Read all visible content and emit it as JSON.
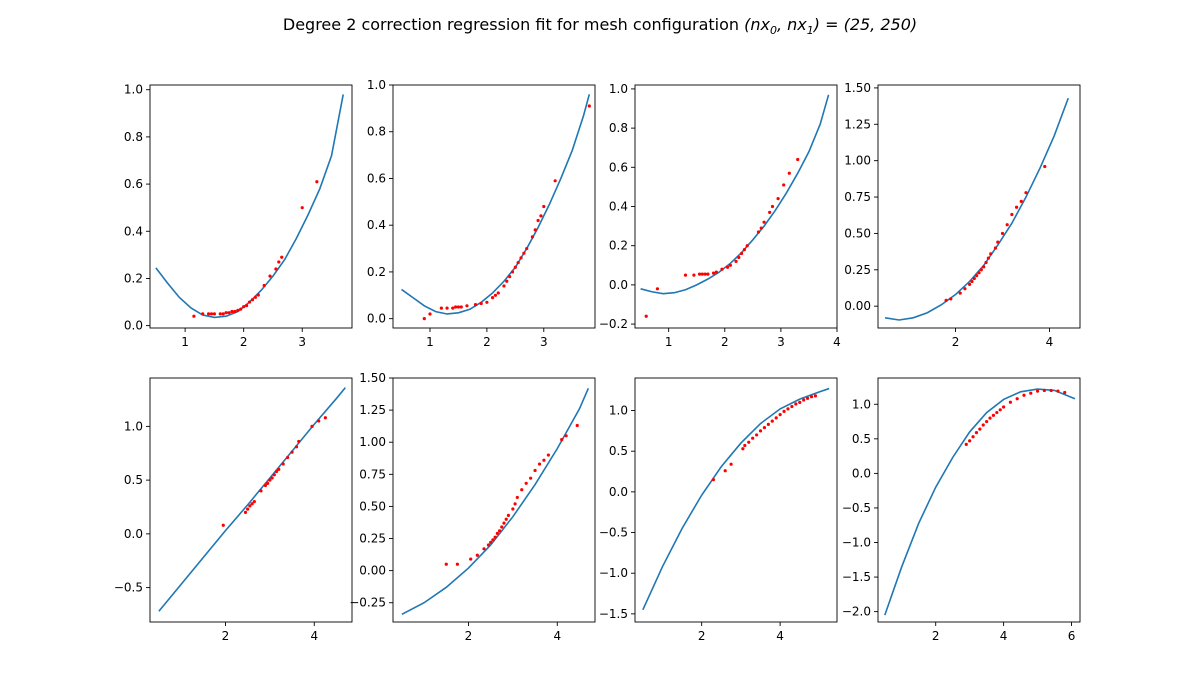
{
  "figure": {
    "title": "Degree 2 correction regression fit for mesh configuration (nx0, nx1) = (25, 250)",
    "title_main": "Degree 2 correction regression fit for mesh configuration ",
    "title_math": "(nx",
    "title_sub0": "0",
    "title_mid": ", nx",
    "title_sub1": "1",
    "title_end": ") = (25, 250)"
  },
  "colors": {
    "curve": "#1f77b4",
    "points": "#ff0000",
    "axes": "#000000"
  },
  "chart_data": [
    {
      "type": "scatter",
      "xlim": [
        0.4,
        3.85
      ],
      "ylim": [
        -0.01,
        1.02
      ],
      "xticks": [
        1,
        2,
        3
      ],
      "xtick_labels": [
        "1",
        "2",
        "3"
      ],
      "yticks": [
        0,
        0.2,
        0.4,
        0.6,
        0.8,
        1.0
      ],
      "ytick_labels": [
        "0.0",
        "0.2",
        "0.4",
        "0.6",
        "0.8",
        "1.0"
      ],
      "series": [
        {
          "kind": "curve",
          "x": [
            0.5,
            0.7,
            0.9,
            1.1,
            1.3,
            1.5,
            1.7,
            1.9,
            2.1,
            2.3,
            2.5,
            2.7,
            2.9,
            3.1,
            3.3,
            3.5,
            3.7
          ],
          "y": [
            0.245,
            0.18,
            0.12,
            0.075,
            0.045,
            0.035,
            0.04,
            0.06,
            0.1,
            0.15,
            0.21,
            0.28,
            0.37,
            0.47,
            0.58,
            0.72,
            0.98
          ]
        },
        {
          "kind": "points",
          "x": [
            1.15,
            1.3,
            1.4,
            1.45,
            1.5,
            1.6,
            1.65,
            1.7,
            1.75,
            1.8,
            1.85,
            1.9,
            1.95,
            2.0,
            2.05,
            2.1,
            2.15,
            2.2,
            2.25,
            2.35,
            2.45,
            2.55,
            2.6,
            2.65,
            3.0,
            3.25
          ],
          "y": [
            0.04,
            0.05,
            0.05,
            0.05,
            0.05,
            0.05,
            0.05,
            0.055,
            0.055,
            0.06,
            0.06,
            0.065,
            0.07,
            0.08,
            0.085,
            0.1,
            0.11,
            0.12,
            0.13,
            0.17,
            0.21,
            0.24,
            0.27,
            0.29,
            0.5,
            0.61
          ]
        }
      ]
    },
    {
      "type": "scatter",
      "xlim": [
        0.35,
        3.9
      ],
      "ylim": [
        -0.04,
        1.0
      ],
      "xticks": [
        1,
        2,
        3
      ],
      "xtick_labels": [
        "1",
        "2",
        "3"
      ],
      "yticks": [
        0,
        0.2,
        0.4,
        0.6,
        0.8,
        1.0
      ],
      "ytick_labels": [
        "0.0",
        "0.2",
        "0.4",
        "0.6",
        "0.8",
        "1.0"
      ],
      "series": [
        {
          "kind": "curve",
          "x": [
            0.5,
            0.7,
            0.9,
            1.1,
            1.3,
            1.5,
            1.7,
            1.9,
            2.1,
            2.3,
            2.5,
            2.7,
            2.9,
            3.1,
            3.3,
            3.5,
            3.7,
            3.8
          ],
          "y": [
            0.125,
            0.09,
            0.055,
            0.03,
            0.02,
            0.025,
            0.04,
            0.07,
            0.11,
            0.16,
            0.22,
            0.3,
            0.39,
            0.49,
            0.6,
            0.72,
            0.87,
            0.96
          ]
        },
        {
          "kind": "points",
          "x": [
            0.9,
            1.0,
            1.2,
            1.3,
            1.4,
            1.45,
            1.5,
            1.55,
            1.65,
            1.8,
            1.9,
            2.0,
            2.1,
            2.15,
            2.2,
            2.3,
            2.35,
            2.4,
            2.45,
            2.5,
            2.55,
            2.6,
            2.65,
            2.7,
            2.8,
            2.85,
            2.9,
            2.95,
            3.0,
            3.2,
            3.8
          ],
          "y": [
            0.0,
            0.02,
            0.045,
            0.045,
            0.045,
            0.05,
            0.05,
            0.05,
            0.055,
            0.06,
            0.065,
            0.07,
            0.09,
            0.1,
            0.11,
            0.14,
            0.16,
            0.18,
            0.2,
            0.22,
            0.24,
            0.26,
            0.28,
            0.3,
            0.35,
            0.38,
            0.42,
            0.44,
            0.48,
            0.59,
            0.91
          ]
        }
      ]
    },
    {
      "type": "scatter",
      "xlim": [
        0.4,
        4.0
      ],
      "ylim": [
        -0.22,
        1.02
      ],
      "xticks": [
        1,
        2,
        3,
        4
      ],
      "xtick_labels": [
        "1",
        "2",
        "3",
        "4"
      ],
      "yticks": [
        -0.2,
        0,
        0.2,
        0.4,
        0.6,
        0.8,
        1.0
      ],
      "ytick_labels": [
        "−0.2",
        "0.0",
        "0.2",
        "0.4",
        "0.6",
        "0.8",
        "1.0"
      ],
      "series": [
        {
          "kind": "curve",
          "x": [
            0.5,
            0.7,
            0.9,
            1.1,
            1.3,
            1.5,
            1.7,
            1.9,
            2.1,
            2.3,
            2.5,
            2.7,
            2.9,
            3.1,
            3.3,
            3.5,
            3.7,
            3.85
          ],
          "y": [
            -0.02,
            -0.035,
            -0.045,
            -0.04,
            -0.025,
            0.0,
            0.03,
            0.065,
            0.11,
            0.165,
            0.23,
            0.3,
            0.38,
            0.47,
            0.57,
            0.68,
            0.82,
            0.97
          ]
        },
        {
          "kind": "points",
          "x": [
            0.6,
            0.8,
            1.3,
            1.45,
            1.55,
            1.6,
            1.65,
            1.7,
            1.8,
            1.85,
            1.95,
            2.05,
            2.1,
            2.2,
            2.25,
            2.3,
            2.35,
            2.4,
            2.6,
            2.65,
            2.7,
            2.8,
            2.85,
            2.95,
            3.05,
            3.15,
            3.3
          ],
          "y": [
            -0.16,
            -0.02,
            0.05,
            0.05,
            0.055,
            0.055,
            0.055,
            0.055,
            0.06,
            0.065,
            0.08,
            0.09,
            0.1,
            0.12,
            0.14,
            0.16,
            0.18,
            0.2,
            0.27,
            0.29,
            0.32,
            0.37,
            0.4,
            0.44,
            0.51,
            0.57,
            0.64
          ]
        }
      ]
    },
    {
      "type": "scatter",
      "xlim": [
        0.35,
        4.65
      ],
      "ylim": [
        -0.15,
        1.52
      ],
      "xticks": [
        2,
        4
      ],
      "xtick_labels": [
        "2",
        "4"
      ],
      "yticks": [
        0,
        0.25,
        0.5,
        0.75,
        1.0,
        1.25,
        1.5
      ],
      "ytick_labels": [
        "0.00",
        "0.25",
        "0.50",
        "0.75",
        "1.00",
        "1.25",
        "1.50"
      ],
      "series": [
        {
          "kind": "curve",
          "x": [
            0.5,
            0.8,
            1.1,
            1.4,
            1.7,
            2.0,
            2.3,
            2.6,
            2.9,
            3.2,
            3.5,
            3.8,
            4.1,
            4.4
          ],
          "y": [
            -0.08,
            -0.095,
            -0.08,
            -0.045,
            0.01,
            0.08,
            0.17,
            0.28,
            0.42,
            0.57,
            0.75,
            0.95,
            1.17,
            1.43
          ]
        },
        {
          "kind": "points",
          "x": [
            1.8,
            1.9,
            2.1,
            2.2,
            2.3,
            2.35,
            2.4,
            2.45,
            2.5,
            2.55,
            2.6,
            2.65,
            2.7,
            2.75,
            2.85,
            2.9,
            3.0,
            3.1,
            3.2,
            3.3,
            3.4,
            3.5,
            3.9
          ],
          "y": [
            0.04,
            0.05,
            0.09,
            0.12,
            0.15,
            0.17,
            0.19,
            0.21,
            0.23,
            0.25,
            0.27,
            0.3,
            0.33,
            0.36,
            0.4,
            0.44,
            0.5,
            0.56,
            0.63,
            0.68,
            0.72,
            0.78,
            0.96
          ]
        }
      ]
    },
    {
      "type": "scatter",
      "xlim": [
        0.3,
        4.85
      ],
      "ylim": [
        -0.82,
        1.45
      ],
      "xticks": [
        2,
        4
      ],
      "xtick_labels": [
        "2",
        "4"
      ],
      "yticks": [
        -0.5,
        0,
        0.5,
        1.0
      ],
      "ytick_labels": [
        "−0.5",
        "0.0",
        "0.5",
        "1.0"
      ],
      "series": [
        {
          "kind": "curve",
          "x": [
            0.5,
            1.0,
            1.5,
            2.0,
            2.5,
            3.0,
            3.5,
            4.0,
            4.5,
            4.7
          ],
          "y": [
            -0.72,
            -0.47,
            -0.22,
            0.03,
            0.27,
            0.52,
            0.77,
            1.02,
            1.26,
            1.36
          ]
        },
        {
          "kind": "points",
          "x": [
            1.95,
            2.45,
            2.5,
            2.55,
            2.6,
            2.65,
            2.8,
            2.9,
            2.95,
            3.0,
            3.05,
            3.1,
            3.15,
            3.2,
            3.3,
            3.4,
            3.5,
            3.6,
            3.65,
            3.95,
            4.1,
            4.25
          ],
          "y": [
            0.08,
            0.2,
            0.23,
            0.26,
            0.28,
            0.3,
            0.4,
            0.45,
            0.47,
            0.5,
            0.52,
            0.55,
            0.58,
            0.6,
            0.65,
            0.71,
            0.76,
            0.81,
            0.86,
            1.0,
            1.05,
            1.08
          ]
        }
      ]
    },
    {
      "type": "scatter",
      "xlim": [
        0.3,
        4.85
      ],
      "ylim": [
        -0.4,
        1.5
      ],
      "xticks": [
        2,
        4
      ],
      "xtick_labels": [
        "2",
        "4"
      ],
      "yticks": [
        -0.25,
        0,
        0.25,
        0.5,
        0.75,
        1.0,
        1.25,
        1.5
      ],
      "ytick_labels": [
        "−0.25",
        "0.00",
        "0.25",
        "0.50",
        "0.75",
        "1.00",
        "1.25",
        "1.50"
      ],
      "series": [
        {
          "kind": "curve",
          "x": [
            0.5,
            1.0,
            1.5,
            2.0,
            2.5,
            3.0,
            3.5,
            4.0,
            4.5,
            4.7
          ],
          "y": [
            -0.34,
            -0.25,
            -0.13,
            0.02,
            0.2,
            0.42,
            0.67,
            0.95,
            1.26,
            1.42
          ]
        },
        {
          "kind": "points",
          "x": [
            1.5,
            1.75,
            2.05,
            2.2,
            2.35,
            2.45,
            2.5,
            2.55,
            2.6,
            2.65,
            2.7,
            2.75,
            2.8,
            2.85,
            2.9,
            3.0,
            3.05,
            3.1,
            3.2,
            3.3,
            3.4,
            3.5,
            3.6,
            3.7,
            3.8,
            4.1,
            4.2,
            4.45
          ],
          "y": [
            0.05,
            0.05,
            0.09,
            0.12,
            0.17,
            0.2,
            0.22,
            0.24,
            0.26,
            0.29,
            0.31,
            0.34,
            0.37,
            0.4,
            0.43,
            0.48,
            0.52,
            0.57,
            0.63,
            0.68,
            0.72,
            0.78,
            0.83,
            0.86,
            0.9,
            1.02,
            1.05,
            1.13
          ]
        }
      ]
    },
    {
      "type": "scatter",
      "xlim": [
        0.3,
        5.45
      ],
      "ylim": [
        -1.6,
        1.4
      ],
      "xticks": [
        2,
        4
      ],
      "xtick_labels": [
        "2",
        "4"
      ],
      "yticks": [
        -1.5,
        -1.0,
        -0.5,
        0,
        0.5,
        1.0
      ],
      "ytick_labels": [
        "−1.5",
        "−1.0",
        "−0.5",
        "0.0",
        "0.5",
        "1.0"
      ],
      "series": [
        {
          "kind": "curve",
          "x": [
            0.5,
            1.0,
            1.5,
            2.0,
            2.5,
            3.0,
            3.5,
            4.0,
            4.5,
            5.0,
            5.25
          ],
          "y": [
            -1.45,
            -0.92,
            -0.45,
            -0.04,
            0.31,
            0.6,
            0.84,
            1.02,
            1.14,
            1.23,
            1.27
          ]
        },
        {
          "kind": "points",
          "x": [
            2.3,
            2.6,
            2.75,
            3.05,
            3.1,
            3.2,
            3.3,
            3.4,
            3.5,
            3.6,
            3.7,
            3.8,
            3.9,
            4.0,
            4.1,
            4.2,
            4.3,
            4.4,
            4.5,
            4.6,
            4.7,
            4.8,
            4.9
          ],
          "y": [
            0.15,
            0.26,
            0.34,
            0.53,
            0.57,
            0.61,
            0.66,
            0.7,
            0.75,
            0.79,
            0.83,
            0.87,
            0.91,
            0.95,
            0.99,
            1.02,
            1.05,
            1.08,
            1.1,
            1.13,
            1.15,
            1.17,
            1.18
          ]
        }
      ]
    },
    {
      "type": "scatter",
      "xlim": [
        0.3,
        6.25
      ],
      "ylim": [
        -2.15,
        1.38
      ],
      "xticks": [
        2,
        4,
        6
      ],
      "xtick_labels": [
        "2",
        "4",
        "6"
      ],
      "yticks": [
        -2.0,
        -1.5,
        -1.0,
        -0.5,
        0,
        0.5,
        1.0
      ],
      "ytick_labels": [
        "−2.0",
        "−1.5",
        "−1.0",
        "−0.5",
        "0.0",
        "0.5",
        "1.0"
      ],
      "series": [
        {
          "kind": "curve",
          "x": [
            0.5,
            1.0,
            1.5,
            2.0,
            2.5,
            3.0,
            3.5,
            4.0,
            4.5,
            5.0,
            5.5,
            6.0,
            6.1
          ],
          "y": [
            -2.05,
            -1.35,
            -0.72,
            -0.2,
            0.23,
            0.6,
            0.88,
            1.07,
            1.18,
            1.22,
            1.2,
            1.1,
            1.08
          ]
        },
        {
          "kind": "points",
          "x": [
            2.9,
            3.0,
            3.1,
            3.2,
            3.3,
            3.4,
            3.5,
            3.6,
            3.7,
            3.8,
            3.9,
            4.0,
            4.2,
            4.4,
            4.6,
            4.8,
            5.0,
            5.2,
            5.4,
            5.6,
            5.8
          ],
          "y": [
            0.42,
            0.47,
            0.53,
            0.59,
            0.64,
            0.7,
            0.75,
            0.8,
            0.84,
            0.88,
            0.92,
            0.96,
            1.03,
            1.08,
            1.13,
            1.16,
            1.19,
            1.2,
            1.2,
            1.19,
            1.17
          ]
        }
      ]
    }
  ]
}
